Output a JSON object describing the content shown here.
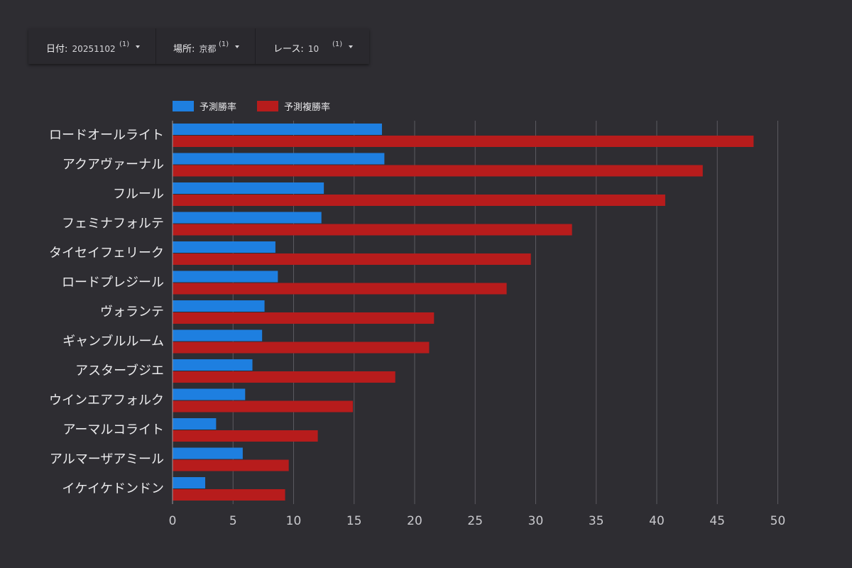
{
  "filters": [
    {
      "label": "日付",
      "value": "20251102",
      "count": "(1)"
    },
    {
      "label": "場所",
      "value": "京都",
      "count": "(1)"
    },
    {
      "label": "レース",
      "value": "10",
      "count": "(1)"
    }
  ],
  "colors": {
    "background": "#2e2d32",
    "win": "#1e7fe0",
    "place": "#b71c1c",
    "grid": "#5b5a60"
  },
  "chart_data": {
    "type": "bar",
    "orientation": "horizontal",
    "categories": [
      "ロードオールライト",
      "アクアヴァーナル",
      "フルール",
      "フェミナフォルテ",
      "タイセイフェリーク",
      "ロードプレジール",
      "ヴォランテ",
      "ギャンブルルーム",
      "アスターブジエ",
      "ウインエアフォルク",
      "アーマルコライト",
      "アルマーザアミール",
      "イケイケドンドン"
    ],
    "series": [
      {
        "name": "予測勝率",
        "color": "#1e7fe0",
        "values": [
          17.3,
          17.5,
          12.5,
          12.3,
          8.5,
          8.7,
          7.6,
          7.4,
          6.6,
          6.0,
          3.6,
          5.8,
          2.7
        ]
      },
      {
        "name": "予測複勝率",
        "color": "#b71c1c",
        "values": [
          48.0,
          43.8,
          40.7,
          33.0,
          29.6,
          27.6,
          21.6,
          21.2,
          18.4,
          14.9,
          12.0,
          9.6,
          9.3
        ]
      }
    ],
    "xlim": [
      0,
      50
    ],
    "xticks": [
      "0",
      "5",
      "10",
      "15",
      "20",
      "25",
      "30",
      "35",
      "40",
      "45",
      "50"
    ],
    "grid": true,
    "legend_position": "top-left"
  }
}
